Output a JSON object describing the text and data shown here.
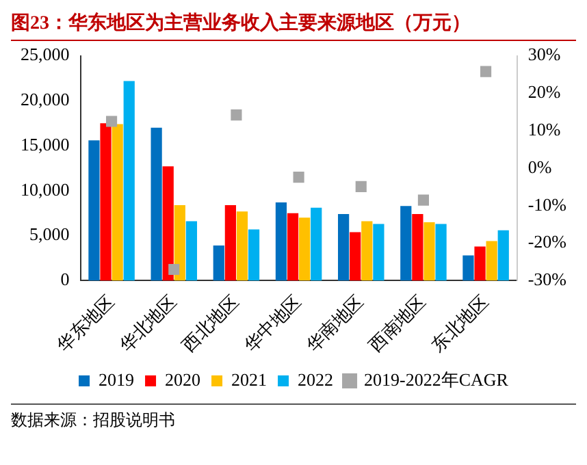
{
  "chart_data": {
    "type": "bar",
    "title": "图23：华东地区为主营业务收入主要来源地区（万元）",
    "categories": [
      "华东地区",
      "华北地区",
      "西北地区",
      "华中地区",
      "华南地区",
      "西南地区",
      "东北地区"
    ],
    "series": [
      {
        "name": "2019",
        "color": "#0070c0",
        "values": [
          15600,
          17000,
          3900,
          8700,
          7400,
          8300,
          2800
        ]
      },
      {
        "name": "2020",
        "color": "#ff0000",
        "values": [
          17500,
          12700,
          8400,
          7500,
          5400,
          7400,
          3800
        ]
      },
      {
        "name": "2021",
        "color": "#ffc000",
        "values": [
          17400,
          8400,
          7700,
          7000,
          6600,
          6500,
          4400
        ]
      },
      {
        "name": "2022",
        "color": "#00b0f0",
        "values": [
          22200,
          6600,
          5700,
          8100,
          6300,
          6300,
          5600
        ]
      },
      {
        "name": "2019-2022年CAGR",
        "type": "scatter",
        "axis": "y2",
        "marker": "square",
        "color": "#a6a6a6",
        "values": [
          12.5,
          -27,
          14.2,
          -2.4,
          -4.9,
          -8.5,
          25.8
        ]
      }
    ],
    "ylim": [
      0,
      25000
    ],
    "yticks": [
      0,
      {
        "value": 5000,
        "label": "5,000"
      },
      {
        "value": 10000,
        "label": "10,000"
      },
      {
        "value": 15000,
        "label": "15,000"
      },
      {
        "value": 20000,
        "label": "20,000"
      },
      {
        "value": 25000,
        "label": "25,000"
      }
    ],
    "y2lim": [
      -30,
      30
    ],
    "y2ticks": [
      {
        "value": -30,
        "label": "-30%"
      },
      {
        "value": -20,
        "label": "-20%"
      },
      {
        "value": -10,
        "label": "-10%"
      },
      {
        "value": 0,
        "label": "0%"
      },
      {
        "value": 10,
        "label": "10%"
      },
      {
        "value": 20,
        "label": "20%"
      },
      {
        "value": 30,
        "label": "30%"
      }
    ],
    "grid": false,
    "legend": "bottom",
    "annotations": [
      "数据来源：招股说明书"
    ]
  }
}
